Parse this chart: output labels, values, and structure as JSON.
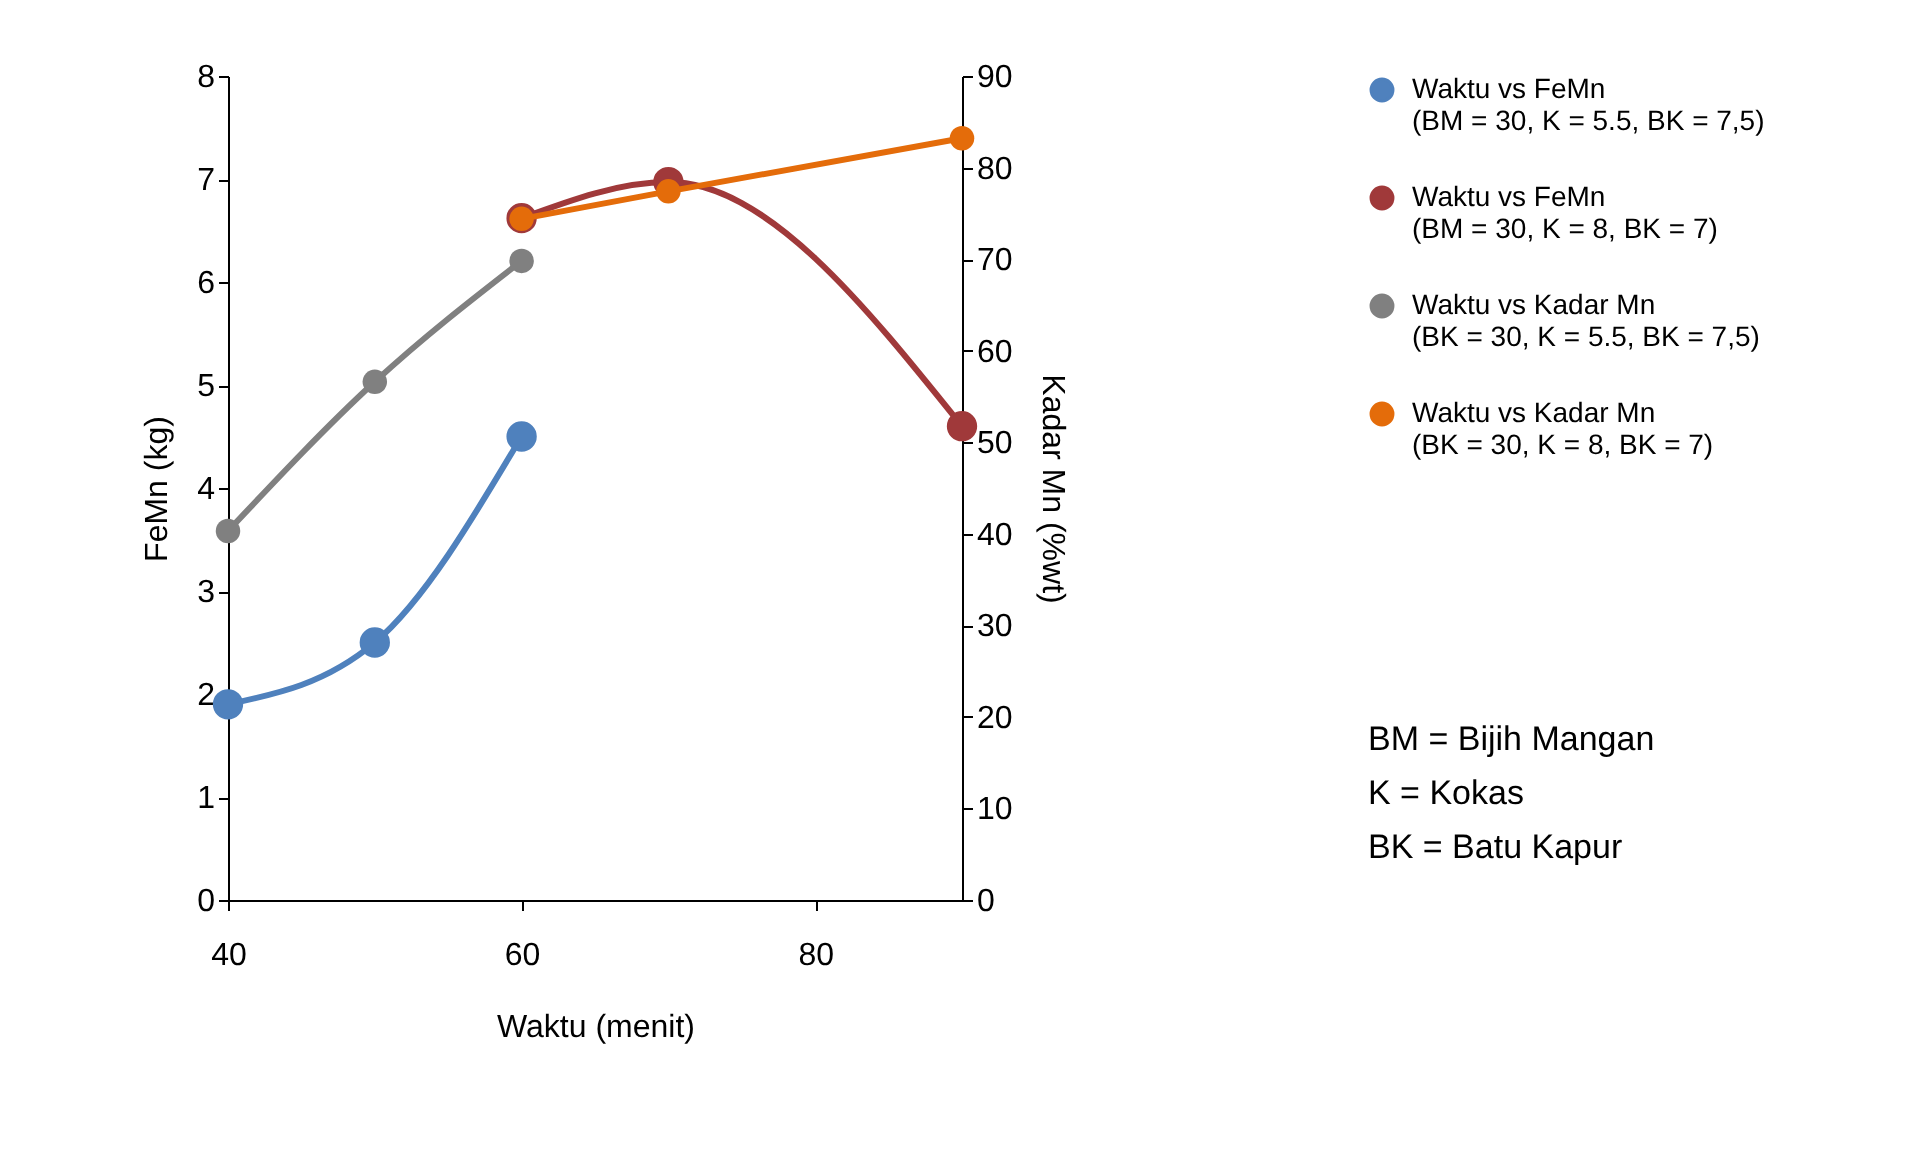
{
  "chart_data": {
    "type": "line",
    "xlabel": "Waktu (menit)",
    "ylabel": "FeMn (kg)",
    "y2label": "Kadar Mn (%wt)",
    "xlim": [
      40,
      90
    ],
    "xticks": [
      40,
      60,
      80
    ],
    "ylim": [
      0,
      8
    ],
    "yticks": [
      0,
      1,
      2,
      3,
      4,
      5,
      6,
      7,
      8
    ],
    "y2lim": [
      0,
      90
    ],
    "y2ticks": [
      0,
      10,
      20,
      30,
      40,
      50,
      60,
      70,
      80,
      90
    ],
    "marker": "circle",
    "grid": false,
    "legend": "right",
    "series": [
      {
        "name": "Waktu vs FeMn\n(BM = 30, K = 5.5, BK = 7,5)",
        "color": "#4f81bd",
        "x": [
          40,
          50,
          60
        ],
        "values": [
          1.9,
          2.5,
          4.5
        ]
      },
      {
        "name": "Waktu vs FeMn\n(BM = 30, K = 8, BK = 7)",
        "color": "#a0393a",
        "x": [
          60,
          70,
          90
        ],
        "values": [
          6.62,
          6.97,
          4.6
        ]
      },
      {
        "name": "Waktu vs Kadar Mn\n(BK = 30, K = 5.5, BK = 7,5)",
        "color": "#808080",
        "axis": "y2",
        "x": [
          40,
          50,
          60
        ],
        "values": [
          40.3,
          56.6,
          69.8
        ]
      },
      {
        "name": "Waktu vs Kadar Mn\n(BK = 30, K = 8, BK = 7)",
        "color": "#e46c0a",
        "axis": "y2",
        "x": [
          60,
          70,
          90
        ],
        "values": [
          74.4,
          77.4,
          83.2
        ]
      }
    ],
    "annotations": [
      "BM = Bijih Mangan",
      "K = Kokas",
      "BK = Batu Kapur"
    ]
  }
}
